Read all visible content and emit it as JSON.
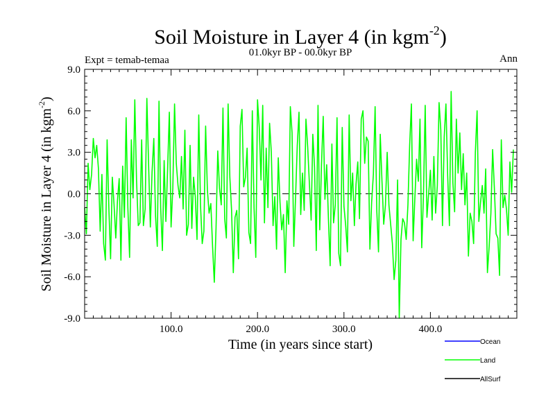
{
  "chart_data": {
    "type": "line",
    "title_main": "Soil Moisture in Layer 4 (in kgm",
    "title_sup": "-2",
    "title_end": ")",
    "subtitle": "01.0kyr BP - 00.0kyr BP",
    "left_label": "Expt = temab-temaa",
    "right_label": "Ann",
    "xlabel": "Time (in years since start)",
    "ylabel_main": "Soil Moisture in Layer 4 (in kgm",
    "ylabel_sup": "-2",
    "ylabel_end": ")",
    "xlim": [
      0,
      500
    ],
    "ylim": [
      -9,
      9
    ],
    "x_ticks": [
      100,
      200,
      300,
      400
    ],
    "x_tick_labels": [
      "100.0",
      "200.0",
      "300.0",
      "400.0"
    ],
    "y_ticks": [
      -9,
      -6,
      -3,
      0,
      3,
      6,
      9
    ],
    "y_tick_labels": [
      "-9.0",
      "-6.0",
      "-3.0",
      "0.0",
      "3.0",
      "6.0",
      "9.0"
    ],
    "zero_line": 0,
    "legend": [
      {
        "name": "Ocean",
        "color": "#0000ff"
      },
      {
        "name": "Land",
        "color": "#00ff00"
      },
      {
        "name": "AllSurf",
        "color": "#000000"
      }
    ],
    "series": [
      {
        "name": "Land",
        "color": "#00ff00",
        "x_start": 0,
        "x_step": 2,
        "values": [
          -1.0,
          -2.9,
          2.2,
          0.3,
          1.4,
          4.0,
          2.6,
          3.5,
          1.8,
          -2.7,
          1.4,
          -3.6,
          -4.8,
          3.9,
          -1.0,
          -4.7,
          1.2,
          -0.8,
          -3.2,
          -0.5,
          1.1,
          -4.8,
          2.0,
          -1.7,
          5.5,
          -1.0,
          -4.6,
          3.9,
          -0.3,
          6.8,
          1.0,
          -2.3,
          -2.1,
          3.9,
          -2.3,
          -1.1,
          6.9,
          2.1,
          -2.4,
          1.6,
          4.0,
          -1.6,
          -3.8,
          6.7,
          -1.0,
          -4.1,
          2.4,
          -2.0,
          1.8,
          5.9,
          -2.4,
          0.4,
          6.5,
          2.2,
          0.6,
          -0.3,
          2.7,
          -1.1,
          4.6,
          -3.0,
          -2.2,
          3.5,
          -2.5,
          1.2,
          -0.2,
          -3.3,
          5.7,
          -0.8,
          -3.6,
          -2.7,
          4.9,
          0.3,
          -1.4,
          -0.7,
          -3.8,
          -6.4,
          -2.5,
          3.1,
          0.4,
          -0.8,
          6.2,
          -1.8,
          -3.2,
          6.5,
          1.2,
          -1.2,
          -5.7,
          -1.7,
          -1.2,
          -4.7,
          4.9,
          6.1,
          0.5,
          1.2,
          3.3,
          -2.8,
          -3.6,
          6.0,
          -1.0,
          -4.6,
          6.8,
          4.8,
          1.0,
          6.4,
          -2.1,
          3.3,
          -1.0,
          5.1,
          3.0,
          -2.3,
          -0.2,
          -4.0,
          2.6,
          -0.6,
          -2.6,
          -1.5,
          -5.7,
          -0.5,
          -2.2,
          6.3,
          4.4,
          -3.8,
          -0.3,
          3.5,
          5.9,
          -1.5,
          1.5,
          -1.2,
          5.4,
          3.4,
          0.7,
          -1.9,
          4.3,
          1.9,
          -4.1,
          6.4,
          -2.6,
          2.1,
          5.6,
          -0.4,
          2.1,
          -1.8,
          -5.2,
          3.6,
          -2.1,
          -0.8,
          5.5,
          -4.3,
          -5.2,
          4.8,
          -0.9,
          -2.3,
          -4.2,
          5.7,
          -0.5,
          1.5,
          -2.3,
          0.7,
          2.3,
          -1.8,
          5.4,
          6.0,
          2.2,
          4.1,
          3.8,
          -4.0,
          -0.6,
          1.4,
          6.3,
          -1.2,
          -4.2,
          4.3,
          0.9,
          -2.2,
          -0.8,
          3.0,
          -0.8,
          -2.2,
          -3.6,
          -6.2,
          -4.8,
          1.0,
          -9.0,
          -3.3,
          -1.8,
          -2.1,
          -3.3,
          -0.8,
          3.5,
          6.5,
          -3.4,
          -0.3,
          2.5,
          0.9,
          5.4,
          -3.9,
          -0.1,
          6.4,
          -1.7,
          0.0,
          1.7,
          -1.9,
          2.7,
          -1.4,
          0.6,
          6.6,
          4.6,
          -2.3,
          4.1,
          6.5,
          1.3,
          -2.3,
          7.4,
          0.8,
          -1.3,
          5.4,
          1.5,
          4.4,
          0.3,
          2.9,
          -0.8,
          1.5,
          -4.5,
          -1.4,
          -2.0,
          -3.6,
          3.0,
          6.0,
          -2.0,
          -0.6,
          0.6,
          -1.4,
          1.8,
          -5.7,
          -3.8,
          -1.4,
          3.2,
          0.4,
          -2.9,
          -3.2,
          -5.9,
          3.9,
          -1.0,
          -0.1,
          -1.1,
          -3.0,
          2.3,
          0.1,
          3.2
        ]
      }
    ]
  }
}
